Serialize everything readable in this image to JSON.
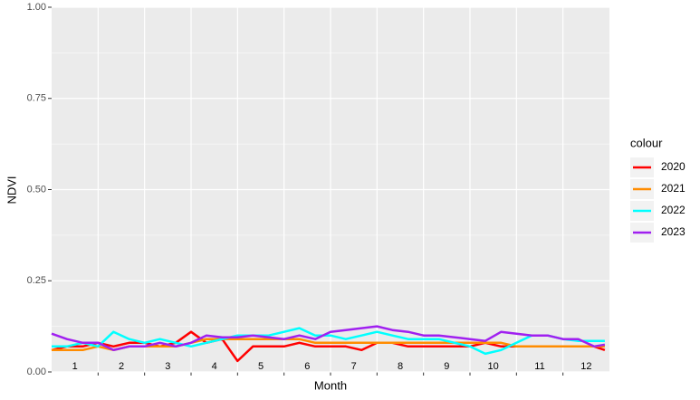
{
  "chart_data": {
    "type": "line",
    "x_label": "Month",
    "y_label": "NDVI",
    "legend_title": "colour",
    "xlim": [
      0,
      12
    ],
    "ylim": [
      0,
      1
    ],
    "xticks": [
      {
        "value": 0.5,
        "label": "1"
      },
      {
        "value": 1.5,
        "label": "2"
      },
      {
        "value": 2.5,
        "label": "3"
      },
      {
        "value": 3.5,
        "label": "4"
      },
      {
        "value": 4.5,
        "label": "5"
      },
      {
        "value": 5.5,
        "label": "6"
      },
      {
        "value": 6.5,
        "label": "7"
      },
      {
        "value": 7.5,
        "label": "8"
      },
      {
        "value": 8.5,
        "label": "9"
      },
      {
        "value": 9.5,
        "label": "10"
      },
      {
        "value": 10.5,
        "label": "11"
      },
      {
        "value": 11.5,
        "label": "12"
      }
    ],
    "x_grid_lines": [
      1,
      2,
      3,
      4,
      5,
      6,
      7,
      8,
      9,
      10,
      11
    ],
    "yticks": [
      {
        "value": 0,
        "label": "0.00"
      },
      {
        "value": 0.25,
        "label": "0.25"
      },
      {
        "value": 0.5,
        "label": "0.50"
      },
      {
        "value": 0.75,
        "label": "0.75"
      },
      {
        "value": 1,
        "label": "1.00"
      }
    ],
    "y_minor_grid": [
      0.125,
      0.375,
      0.625,
      0.875
    ],
    "grid": true,
    "legend_position": "right",
    "x": [
      0,
      0.33,
      0.67,
      1,
      1.33,
      1.67,
      2,
      2.33,
      2.67,
      3,
      3.33,
      3.67,
      4,
      4.33,
      4.67,
      5,
      5.33,
      5.67,
      6,
      6.33,
      6.67,
      7,
      7.33,
      7.67,
      8,
      8.33,
      8.67,
      9,
      9.33,
      9.67,
      10,
      10.33,
      10.67,
      11,
      11.33,
      11.67,
      11.9
    ],
    "series": [
      {
        "name": "2020",
        "color": "#ff0000",
        "values": [
          0.06,
          0.07,
          0.07,
          0.08,
          0.07,
          0.08,
          0.08,
          0.07,
          0.08,
          0.11,
          0.08,
          0.09,
          0.03,
          0.07,
          0.07,
          0.07,
          0.08,
          0.07,
          0.07,
          0.07,
          0.06,
          0.08,
          0.08,
          0.07,
          0.07,
          0.07,
          0.07,
          0.07,
          0.08,
          0.07,
          0.07,
          0.07,
          0.07,
          0.07,
          0.07,
          0.07,
          0.06
        ]
      },
      {
        "name": "2021",
        "color": "#ff8c00",
        "values": [
          0.06,
          0.06,
          0.06,
          0.07,
          0.06,
          0.07,
          0.07,
          0.07,
          0.07,
          0.08,
          0.09,
          0.09,
          0.09,
          0.09,
          0.09,
          0.09,
          0.09,
          0.08,
          0.08,
          0.08,
          0.08,
          0.08,
          0.08,
          0.08,
          0.08,
          0.08,
          0.08,
          0.08,
          0.08,
          0.08,
          0.07,
          0.07,
          0.07,
          0.07,
          0.07,
          0.07,
          0.07
        ]
      },
      {
        "name": "2022",
        "color": "#00ffff",
        "values": [
          0.07,
          0.07,
          0.08,
          0.07,
          0.11,
          0.09,
          0.08,
          0.09,
          0.08,
          0.07,
          0.08,
          0.09,
          0.1,
          0.1,
          0.1,
          0.11,
          0.12,
          0.1,
          0.1,
          0.09,
          0.1,
          0.11,
          0.1,
          0.09,
          0.09,
          0.09,
          0.08,
          0.07,
          0.05,
          0.06,
          0.08,
          0.1,
          0.1,
          0.09,
          0.085,
          0.085,
          0.085
        ]
      },
      {
        "name": "2023",
        "color": "#a020f0",
        "values": [
          0.105,
          0.09,
          0.08,
          0.08,
          0.06,
          0.07,
          0.07,
          0.08,
          0.07,
          0.08,
          0.1,
          0.095,
          0.095,
          0.1,
          0.095,
          0.09,
          0.1,
          0.09,
          0.11,
          0.115,
          0.12,
          0.125,
          0.115,
          0.11,
          0.1,
          0.1,
          0.095,
          0.09,
          0.085,
          0.11,
          0.105,
          0.1,
          0.1,
          0.09,
          0.09,
          0.07,
          0.075
        ]
      }
    ]
  }
}
